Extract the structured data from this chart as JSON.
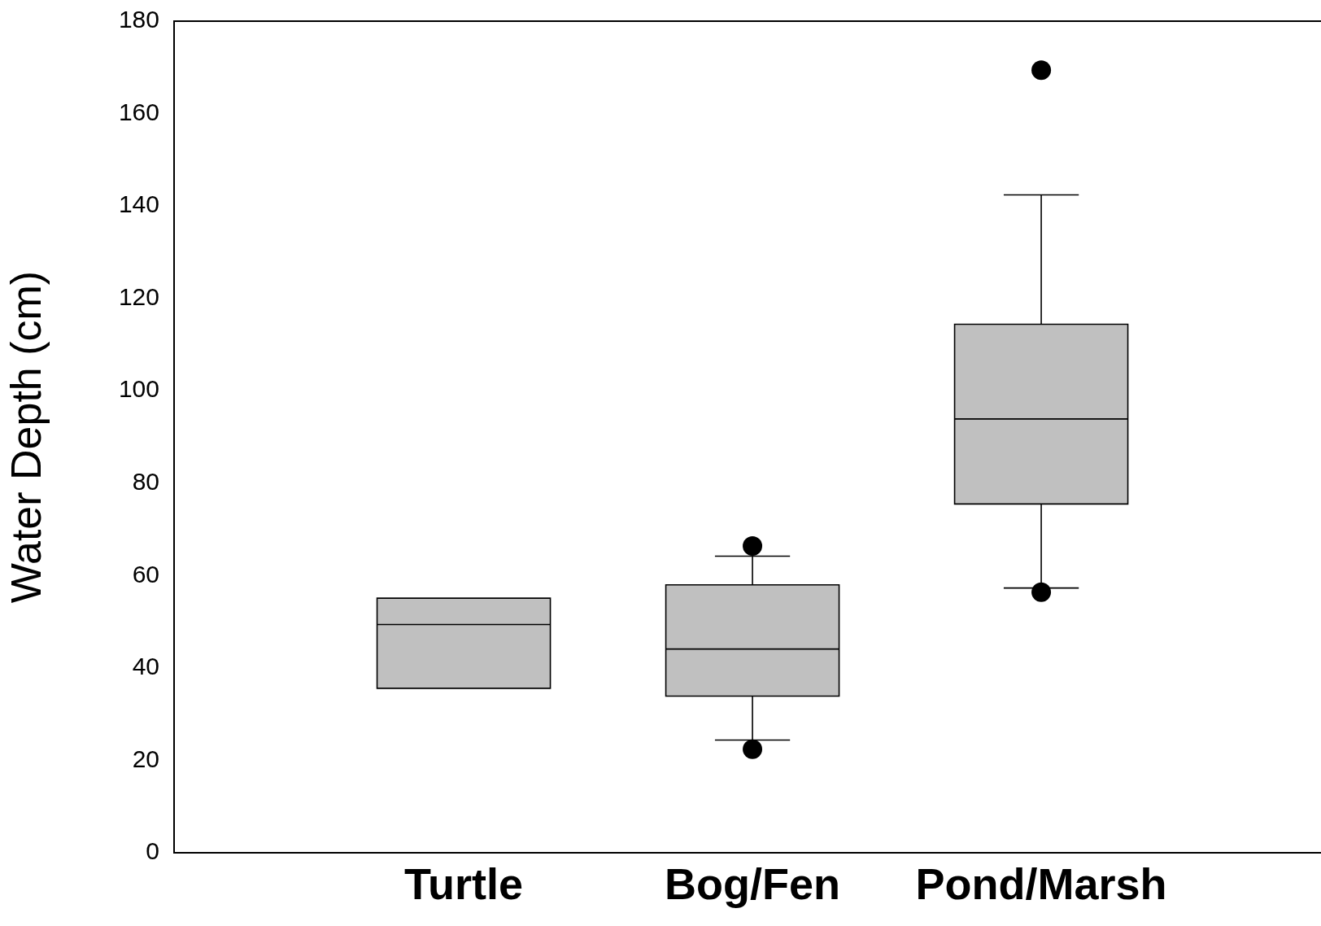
{
  "chart_data": {
    "type": "box",
    "ylabel": "Water Depth (cm)",
    "categories": [
      "Turtle",
      "Bog/Fen",
      "Pond/Marsh"
    ],
    "color": "#c0c0c0",
    "boxes": [
      {
        "low": 35.6,
        "q1": 35.6,
        "median": 49.4,
        "q3": 55.1,
        "high": 55.1
      },
      {
        "low": 24.4,
        "q1": 33.9,
        "median": 44.1,
        "q3": 58.0,
        "high": 64.2,
        "outliers": [
          66.4,
          22.4
        ]
      },
      {
        "low": 57.3,
        "q1": 75.5,
        "median": 93.9,
        "q3": 114.4,
        "high": 142.4,
        "outliers": [
          169.4,
          56.4
        ]
      }
    ],
    "ylim": [
      0,
      180
    ],
    "yticks": [
      0,
      20,
      40,
      60,
      80,
      100,
      120,
      140,
      160,
      180
    ],
    "grid": false
  }
}
